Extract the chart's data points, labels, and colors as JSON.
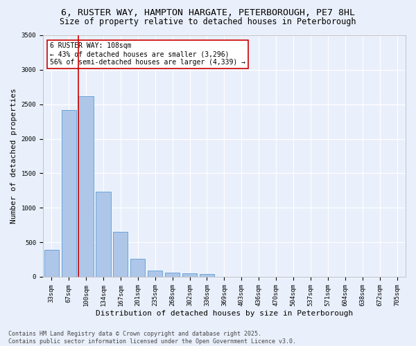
{
  "title_line1": "6, RUSTER WAY, HAMPTON HARGATE, PETERBOROUGH, PE7 8HL",
  "title_line2": "Size of property relative to detached houses in Peterborough",
  "xlabel": "Distribution of detached houses by size in Peterborough",
  "ylabel": "Number of detached properties",
  "categories": [
    "33sqm",
    "67sqm",
    "100sqm",
    "134sqm",
    "167sqm",
    "201sqm",
    "235sqm",
    "268sqm",
    "302sqm",
    "336sqm",
    "369sqm",
    "403sqm",
    "436sqm",
    "470sqm",
    "504sqm",
    "537sqm",
    "571sqm",
    "604sqm",
    "638sqm",
    "672sqm",
    "705sqm"
  ],
  "values": [
    390,
    2420,
    2620,
    1230,
    650,
    260,
    90,
    55,
    50,
    35,
    0,
    0,
    0,
    0,
    0,
    0,
    0,
    0,
    0,
    0,
    0
  ],
  "bar_color": "#aec6e8",
  "bar_edge_color": "#5b9bd5",
  "highlight_line_color": "#cc0000",
  "annotation_text": "6 RUSTER WAY: 108sqm\n← 43% of detached houses are smaller (3,296)\n56% of semi-detached houses are larger (4,339) →",
  "annotation_box_color": "#ffffff",
  "annotation_box_edge_color": "#cc0000",
  "ylim": [
    0,
    3500
  ],
  "yticks": [
    0,
    500,
    1000,
    1500,
    2000,
    2500,
    3000,
    3500
  ],
  "background_color": "#eaf0fb",
  "grid_color": "#ffffff",
  "footer_line1": "Contains HM Land Registry data © Crown copyright and database right 2025.",
  "footer_line2": "Contains public sector information licensed under the Open Government Licence v3.0.",
  "title_fontsize": 9.5,
  "subtitle_fontsize": 8.5,
  "axis_label_fontsize": 8,
  "tick_fontsize": 6.5,
  "annotation_fontsize": 7,
  "footer_fontsize": 6
}
